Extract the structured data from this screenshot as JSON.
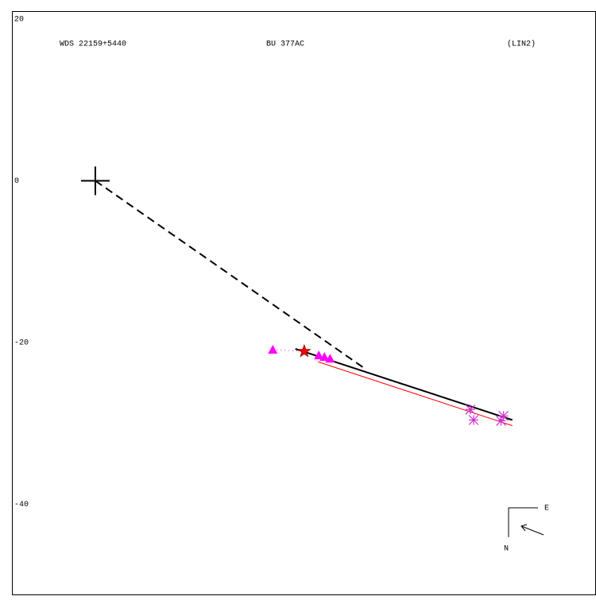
{
  "chart_data": {
    "type": "scatter",
    "header": [
      "WDS 22159+5440",
      "BU  377AC",
      "(LIN2)"
    ],
    "xlim": [
      -10.34,
      62.07
    ],
    "ylim": [
      -51.28,
      20.89
    ],
    "yticks": [
      20,
      0,
      -20,
      -40
    ],
    "compass": [
      "E",
      "N"
    ],
    "series": [
      {
        "kind": "cross",
        "color": "#000000",
        "x": [
          0
        ],
        "y": [
          0
        ]
      },
      {
        "kind": "dashed-line",
        "color": "#000000",
        "x": [
          0,
          33.5
        ],
        "y": [
          0,
          -23.3
        ]
      },
      {
        "kind": "line",
        "color": "#ff0000",
        "x": [
          27.6,
          51.7
        ],
        "y": [
          -22.4,
          -30.3
        ]
      },
      {
        "kind": "line",
        "color": "#000000",
        "x": [
          24.8,
          51.7
        ],
        "y": [
          -20.8,
          -29.6
        ]
      },
      {
        "kind": "dotted-line",
        "color": "#ff00ff",
        "x": [
          22.0,
          25.9
        ],
        "y": [
          -20.9,
          -21.1
        ]
      },
      {
        "kind": "triangle",
        "color": "#ff00ff",
        "x": [
          22.0,
          27.7,
          28.4,
          29.1
        ],
        "y": [
          -20.9,
          -21.6,
          -21.8,
          -22.0
        ]
      },
      {
        "kind": "asterisk",
        "color": "#cc33cc",
        "x": [
          46.5,
          46.9,
          50.3,
          50.6
        ],
        "y": [
          -28.3,
          -29.6,
          -29.7,
          -29.1
        ]
      },
      {
        "kind": "star",
        "color": "#ff0000",
        "x": [
          25.9
        ],
        "y": [
          -21.1
        ]
      }
    ]
  }
}
